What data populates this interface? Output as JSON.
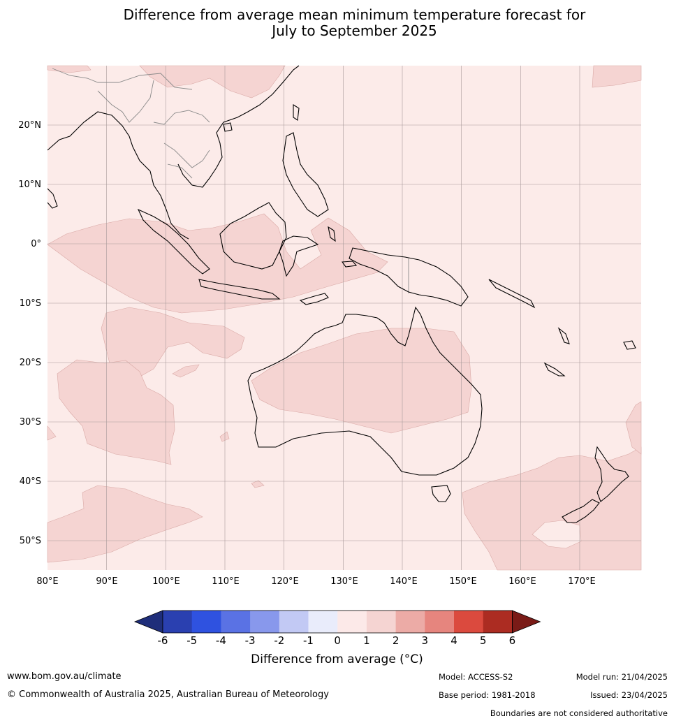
{
  "title": {
    "line1": "Difference from average mean minimum temperature forecast for",
    "line2": "July to September 2025"
  },
  "map": {
    "lat_ticks": [
      "20°N",
      "10°N",
      "0°",
      "10°S",
      "20°S",
      "30°S",
      "40°S",
      "50°S"
    ],
    "lon_ticks": [
      "80°E",
      "90°E",
      "100°E",
      "110°E",
      "120°E",
      "130°E",
      "140°E",
      "150°E",
      "160°E",
      "170°E"
    ],
    "background_category": "0 to 1",
    "anomaly_regions_category": "1 to 2"
  },
  "colorbar": {
    "ticks": [
      "-6",
      "-5",
      "-4",
      "-3",
      "-2",
      "-1",
      "0",
      "1",
      "2",
      "3",
      "4",
      "5",
      "6"
    ],
    "colors": [
      "#1f2e7a",
      "#2a40b0",
      "#2f52e0",
      "#5a72e4",
      "#8898ec",
      "#c2c9f4",
      "#e9ecfb",
      "#fce9e8",
      "#f5d4d2",
      "#ecaba6",
      "#e6857e",
      "#db4a3e",
      "#ac2c22",
      "#7a1b17"
    ],
    "label": "Difference from average (°C)"
  },
  "footer": {
    "website": "www.bom.gov.au/climate",
    "copyright": "© Commonwealth of Australia 2025, Australian Bureau of Meteorology",
    "model": "Model: ACCESS-S2",
    "base_period": "Base period: 1981-2018",
    "model_run": "Model run: 21/04/2025",
    "issued": "Issued: 23/04/2025",
    "disclaimer": "Boundaries are not considered authoritative"
  }
}
